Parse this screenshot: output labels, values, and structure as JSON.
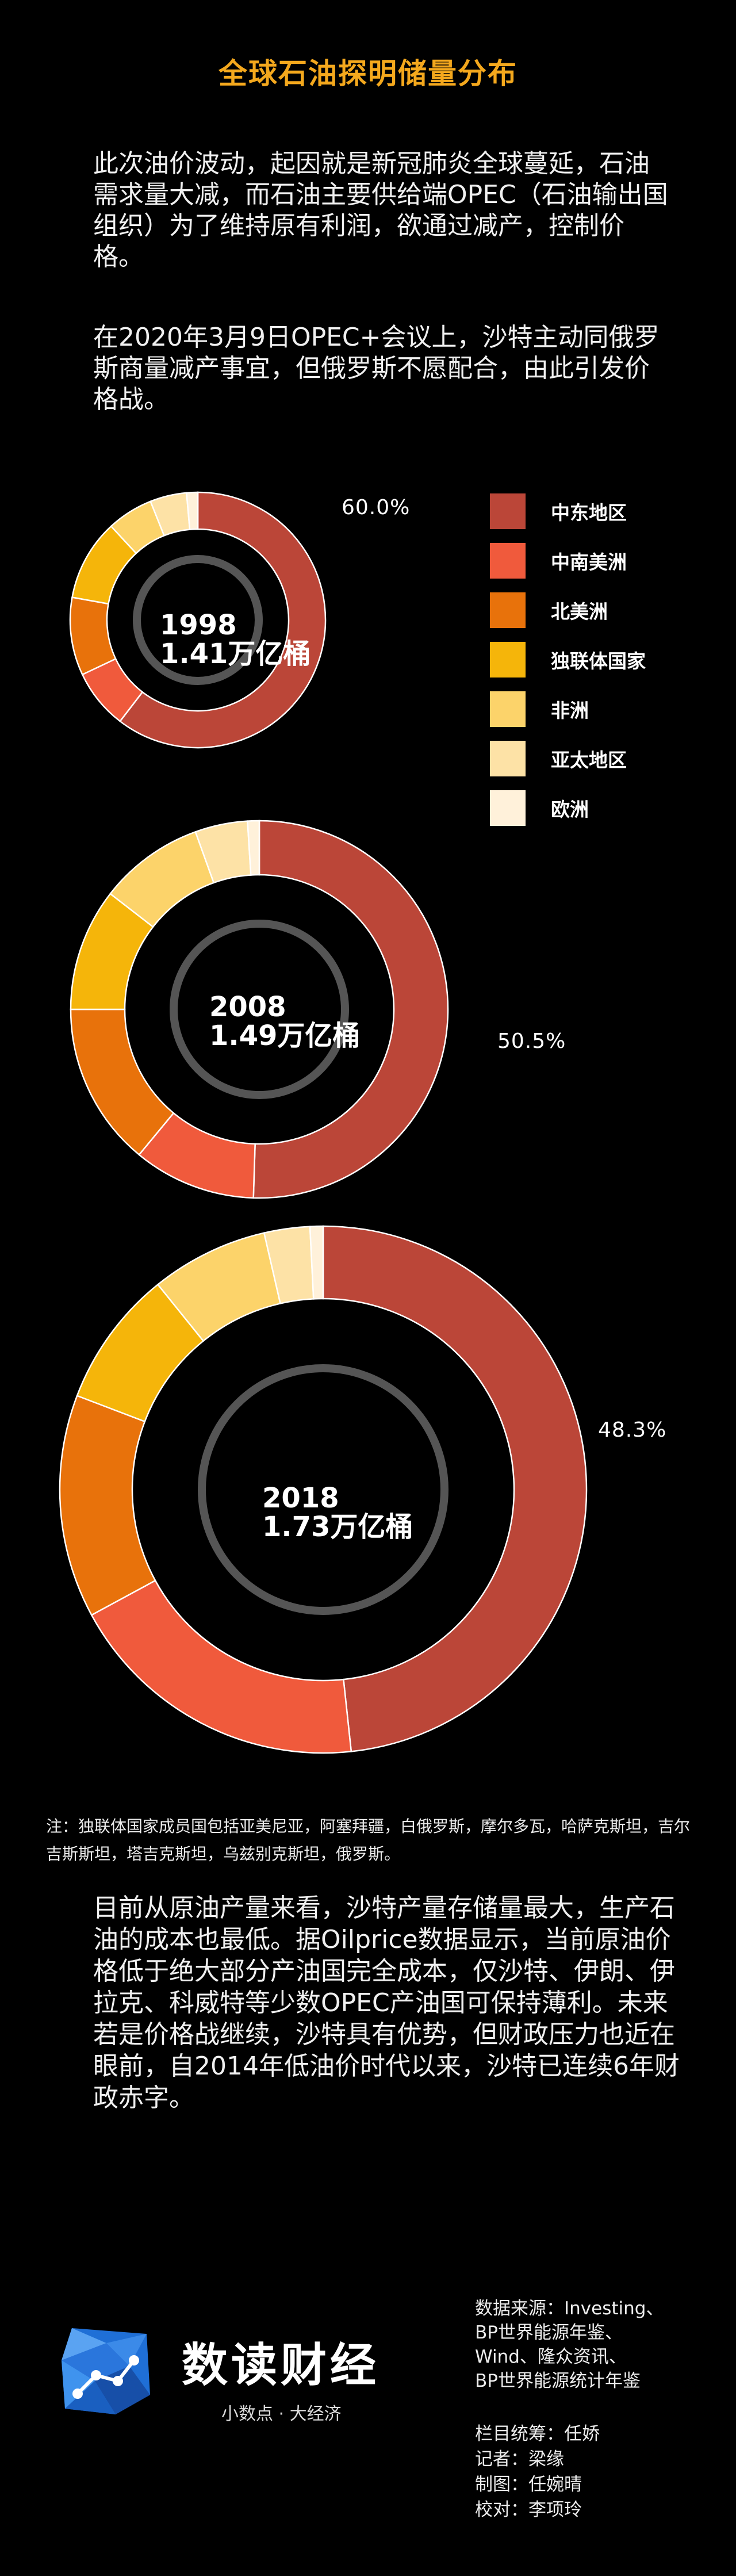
{
  "header": {
    "title": "全球石油探明储量分布"
  },
  "intro": {
    "p1": "此次油价波动，起因就是新冠肺炎全球蔓延，石油需求量大减，而石油主要供给端OPEC（石油输出国组织）为了维持原有利润，欲通过减产，控制价格。",
    "p2": "在2020年3月9日OPEC+会议上，沙特主动同俄罗斯商量减产事宜，但俄罗斯不愿配合，由此引发价格战。"
  },
  "legend": [
    {
      "label": "中东地区",
      "color": "#bb4638"
    },
    {
      "label": "中南美洲",
      "color": "#f05a3c"
    },
    {
      "label": "北美洲",
      "color": "#e8720b"
    },
    {
      "label": "独联体国家",
      "color": "#f5b50a"
    },
    {
      "label": "非洲",
      "color": "#fcd36a"
    },
    {
      "label": "亚太地区",
      "color": "#fde2a6"
    },
    {
      "label": "欧洲",
      "color": "#fff1da"
    }
  ],
  "chart_data": [
    {
      "type": "pie",
      "center_label": {
        "year": "1998",
        "total": "1.41万亿桶"
      },
      "highlight_label": "60.0%",
      "series": [
        {
          "values": [
            60.0,
            7.5,
            9.8,
            10.2,
            5.8,
            4.6,
            1.4
          ]
        }
      ],
      "categories": [
        "中东地区",
        "中南美洲",
        "北美洲",
        "独联体国家",
        "非洲",
        "亚太地区",
        "欧洲"
      ]
    },
    {
      "type": "pie",
      "center_label": {
        "year": "2008",
        "total": "1.49万亿桶"
      },
      "highlight_label": "50.5%",
      "series": [
        {
          "values": [
            50.5,
            10.5,
            14.0,
            10.5,
            9.0,
            4.5,
            1.0
          ]
        }
      ],
      "categories": [
        "中东地区",
        "中南美洲",
        "北美洲",
        "独联体国家",
        "非洲",
        "亚太地区",
        "欧洲"
      ]
    },
    {
      "type": "pie",
      "center_label": {
        "year": "2018",
        "total": "1.73万亿桶"
      },
      "highlight_label": "48.3%",
      "series": [
        {
          "values": [
            48.3,
            18.8,
            13.7,
            8.4,
            7.2,
            2.8,
            0.8
          ]
        }
      ],
      "categories": [
        "中东地区",
        "中南美洲",
        "北美洲",
        "独联体国家",
        "非洲",
        "亚太地区",
        "欧洲"
      ]
    }
  ],
  "note": "注：独联体国家成员国包括亚美尼亚，阿塞拜疆，白俄罗斯，摩尔多瓦，哈萨克斯坦，吉尔吉斯斯坦，塔吉克斯坦，乌兹别克斯坦，俄罗斯。",
  "bottom_text": "目前从原油产量来看，沙特产量存储量最大，生产石油的成本也最低。据Oilprice数据显示，当前原油价格低于绝大部分产油国完全成本，仅沙特、伊朗、伊拉克、科威特等少数OPEC产油国可保持薄利。未来若是价格战继续，沙特具有优势，但财政压力也近在眼前，自2014年低油价时代以来，沙特已连续6年财政赤字。",
  "footer": {
    "brand_name": "数读财经",
    "brand_slogan": "小数点 · 大经济",
    "source_lines": [
      "数据来源：Investing、",
      "BP世界能源年鉴、",
      "Wind、隆众资讯、",
      "BP世界能源统计年鉴"
    ],
    "credits": [
      "栏目统筹：任娇",
      "记者：梁缘",
      "制图：任婉晴",
      "校对：李项玲"
    ]
  },
  "colors": {
    "title": "#f4a81d",
    "background": "#000000",
    "inner_ring": "#555555"
  }
}
